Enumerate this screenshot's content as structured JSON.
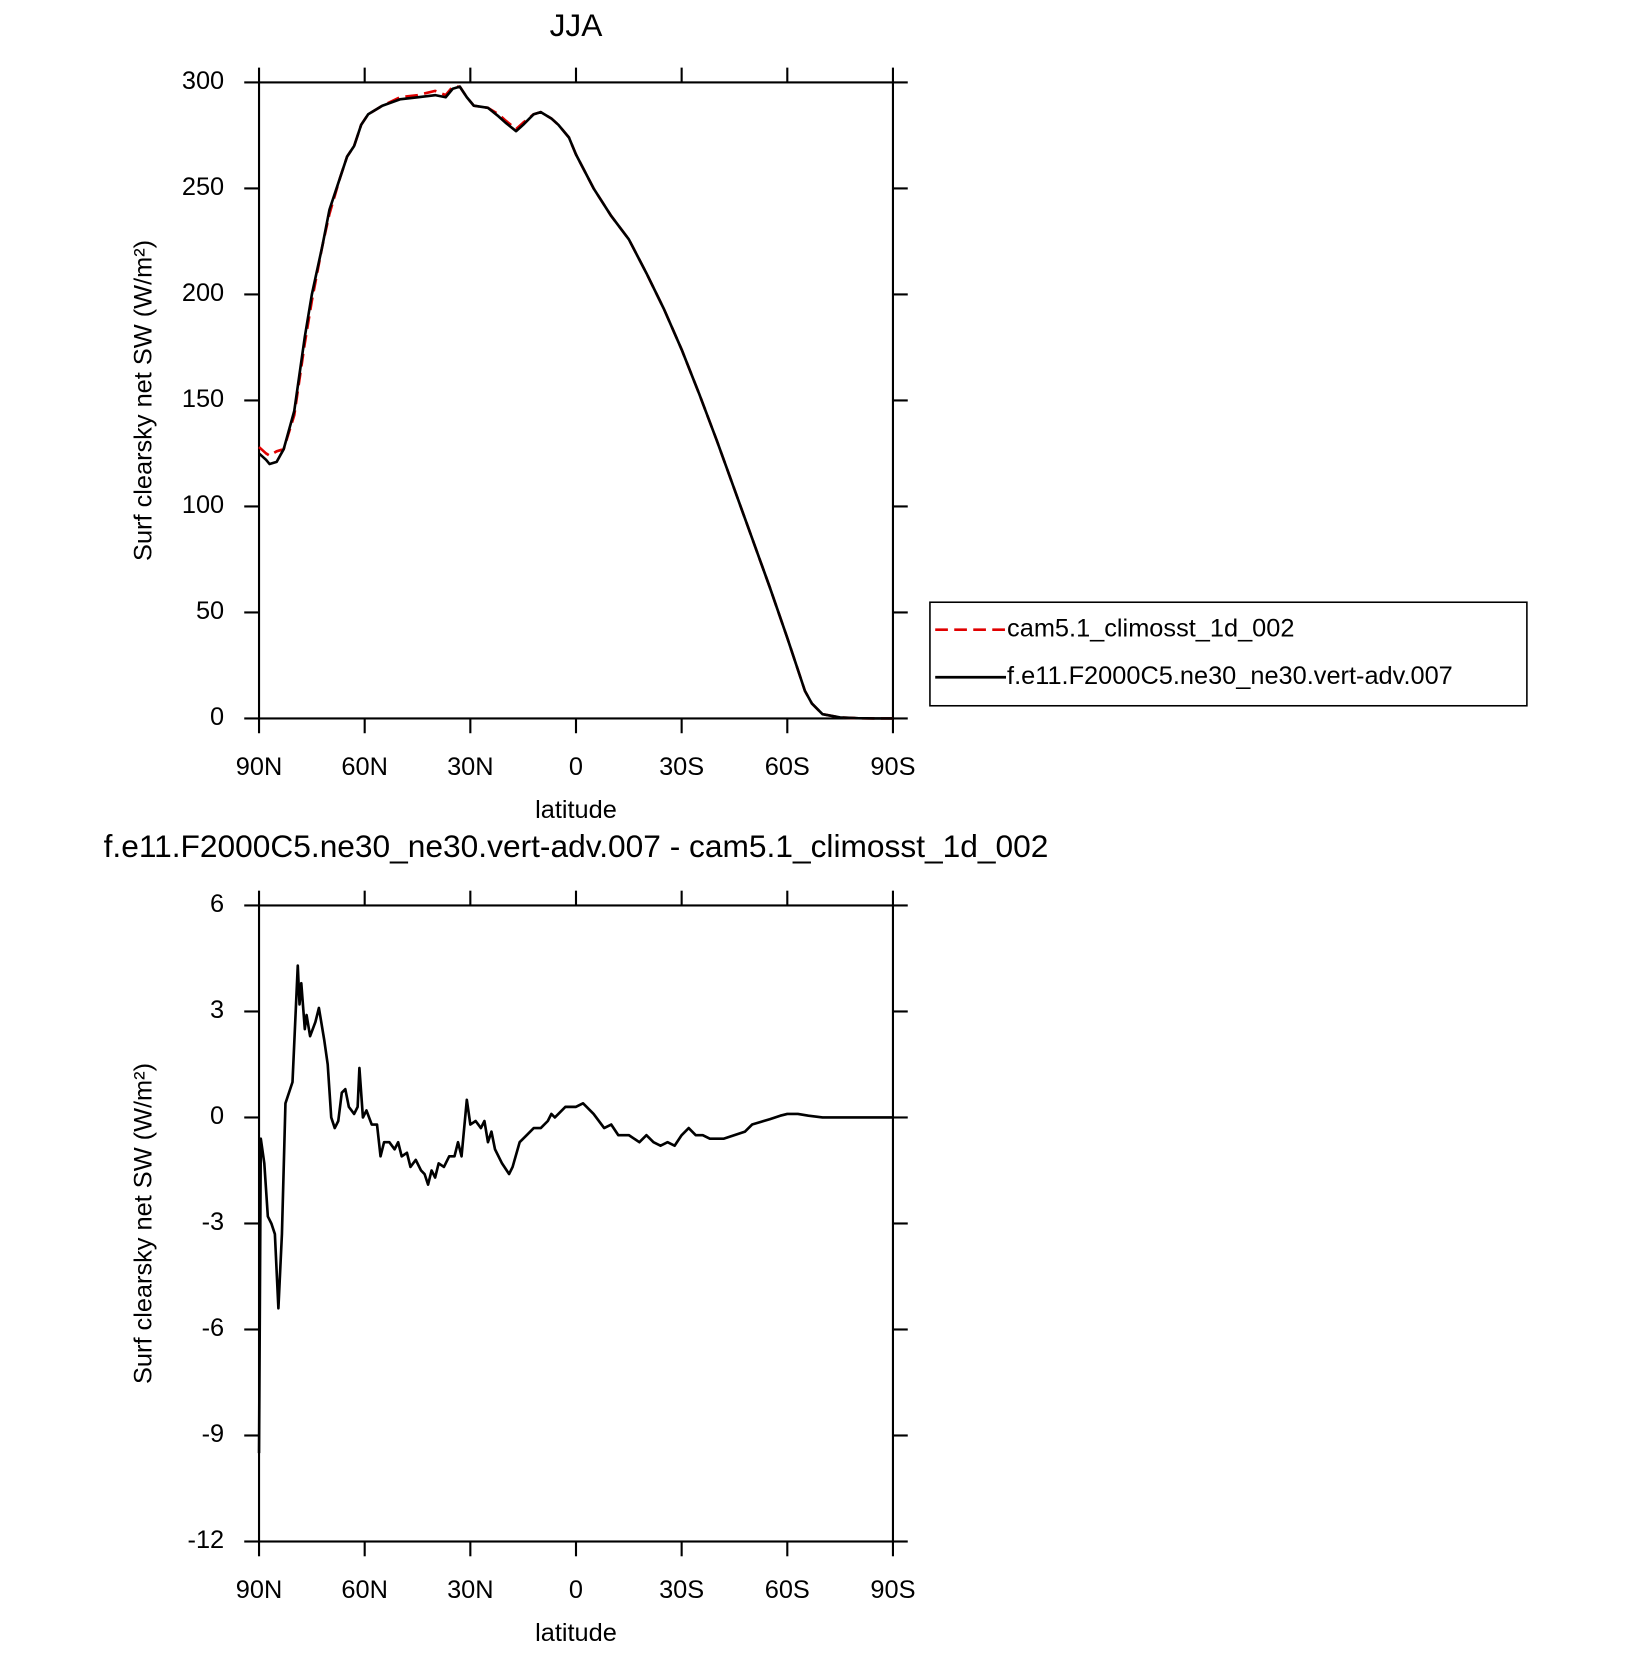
{
  "chart_data": [
    {
      "type": "line",
      "title": "JJA",
      "x_label": "latitude",
      "y_label": "Surf clearsky net SW (W/m²)",
      "xlim": [
        90,
        -90
      ],
      "xticks": [
        {
          "value": 90,
          "label": "90N"
        },
        {
          "value": 60,
          "label": "60N"
        },
        {
          "value": 30,
          "label": "30N"
        },
        0,
        {
          "value": -30,
          "label": "30S"
        },
        {
          "value": -60,
          "label": "60S"
        },
        {
          "value": -90,
          "label": "90S"
        }
      ],
      "ylim": [
        0,
        300
      ],
      "yticks": [
        0,
        50,
        100,
        150,
        200,
        250,
        300
      ],
      "legend": "right",
      "x": [
        90,
        88,
        87,
        85,
        83,
        80,
        77,
        75,
        72,
        70,
        67,
        65,
        63,
        61,
        59,
        55,
        50,
        45,
        40,
        37,
        35,
        33,
        31,
        29,
        25,
        22,
        20,
        17,
        15,
        12,
        10,
        7,
        5,
        2,
        0,
        -5,
        -10,
        -15,
        -20,
        -25,
        -30,
        -35,
        -40,
        -45,
        -50,
        -55,
        -60,
        -65,
        -67,
        -70,
        -75,
        -80,
        -85,
        -90
      ],
      "series": [
        {
          "name": "cam5.1_climosst_1d_002",
          "color": "#e00000",
          "style": "dashed",
          "values": [
            128,
            125,
            124,
            126,
            127,
            143,
            177,
            197,
            223,
            238,
            255,
            265,
            270,
            280,
            285,
            289,
            293,
            294,
            296,
            294,
            298,
            298,
            293,
            289,
            288,
            285,
            282,
            278,
            281,
            285,
            286,
            283,
            280,
            274,
            266,
            250,
            237,
            226,
            210,
            193,
            174,
            153,
            131,
            108,
            85,
            62,
            38,
            13,
            7,
            2,
            0.5,
            0.1,
            0,
            0
          ]
        },
        {
          "name": "f.e11.F2000C5.ne30_ne30.vert-adv.007",
          "color": "#000000",
          "style": "solid",
          "values": [
            125,
            122,
            120,
            121,
            127,
            145,
            180,
            200,
            223,
            240,
            255,
            265,
            270,
            280,
            285,
            289,
            292,
            293,
            294,
            293,
            297,
            298,
            293,
            289,
            288,
            284,
            281,
            277,
            280,
            285,
            286,
            283,
            280,
            274,
            266,
            250,
            237,
            226,
            210,
            193,
            174,
            153,
            131,
            108,
            85,
            62,
            38,
            13,
            7,
            2,
            0.5,
            0.1,
            0,
            0
          ]
        }
      ]
    },
    {
      "type": "line",
      "title": "f.e11.F2000C5.ne30_ne30.vert-adv.007 - cam5.1_climosst_1d_002",
      "x_label": "latitude",
      "y_label": "Surf clearsky net SW (W/m²)",
      "xlim": [
        90,
        -90
      ],
      "xticks": [
        {
          "value": 90,
          "label": "90N"
        },
        {
          "value": 60,
          "label": "60N"
        },
        {
          "value": 30,
          "label": "30N"
        },
        0,
        {
          "value": -30,
          "label": "30S"
        },
        {
          "value": -60,
          "label": "60S"
        },
        {
          "value": -90,
          "label": "90S"
        }
      ],
      "ylim": [
        -12,
        6
      ],
      "yticks": [
        -12,
        -9,
        -6,
        -3,
        0,
        3,
        6
      ],
      "x": [
        90,
        89.5,
        88.5,
        87.5,
        86.5,
        85.5,
        84.5,
        83.5,
        82.5,
        80.5,
        79,
        78.5,
        78,
        77,
        76.5,
        75.5,
        74,
        73,
        71.5,
        70.5,
        69.5,
        68.5,
        67.5,
        66.5,
        65.5,
        64.5,
        63,
        62,
        61.5,
        60.5,
        59.5,
        58,
        56.5,
        55.5,
        54.5,
        53,
        51.5,
        50.5,
        49.5,
        48,
        47,
        45.5,
        44,
        43,
        42,
        41,
        40,
        39,
        37.5,
        36,
        34.5,
        33.5,
        32.5,
        31,
        30,
        28.5,
        27,
        26,
        25,
        24,
        23,
        21,
        19,
        18,
        16,
        14,
        12,
        10,
        8,
        7,
        6,
        5,
        3,
        1,
        0,
        -2,
        -3,
        -5,
        -8,
        -10,
        -12,
        -15,
        -18,
        -20,
        -22,
        -24,
        -26,
        -28,
        -30,
        -32,
        -34,
        -36,
        -38,
        -42,
        -45,
        -48,
        -50,
        -55,
        -58,
        -60,
        -63,
        -66,
        -70,
        -80,
        -90
      ],
      "series": [
        {
          "color": "#000000",
          "style": "solid",
          "values": [
            -9.5,
            -0.6,
            -1.3,
            -2.8,
            -3,
            -3.3,
            -5.4,
            -3.3,
            0.4,
            1,
            4.3,
            3.2,
            3.8,
            2.5,
            2.9,
            2.3,
            2.7,
            3.1,
            2.2,
            1.5,
            0,
            -0.3,
            -0.1,
            0.7,
            0.8,
            0.3,
            0.1,
            0.3,
            1.4,
            0,
            0.2,
            -0.2,
            -0.2,
            -1.1,
            -0.7,
            -0.7,
            -0.9,
            -0.7,
            -1.1,
            -1,
            -1.4,
            -1.2,
            -1.5,
            -1.6,
            -1.9,
            -1.5,
            -1.7,
            -1.3,
            -1.4,
            -1.1,
            -1.1,
            -0.7,
            -1.1,
            0.5,
            -0.2,
            -0.1,
            -0.3,
            -0.1,
            -0.7,
            -0.4,
            -0.9,
            -1.3,
            -1.6,
            -1.4,
            -0.7,
            -0.5,
            -0.3,
            -0.3,
            -0.1,
            0.1,
            0,
            0.1,
            0.3,
            0.3,
            0.3,
            0.4,
            0.3,
            0.1,
            -0.3,
            -0.2,
            -0.5,
            -0.5,
            -0.7,
            -0.5,
            -0.7,
            -0.8,
            -0.7,
            -0.8,
            -0.5,
            -0.3,
            -0.5,
            -0.5,
            -0.6,
            -0.6,
            -0.5,
            -0.4,
            -0.2,
            -0.05,
            0.05,
            0.1,
            0.1,
            0.05,
            0,
            0,
            0
          ]
        }
      ]
    }
  ]
}
